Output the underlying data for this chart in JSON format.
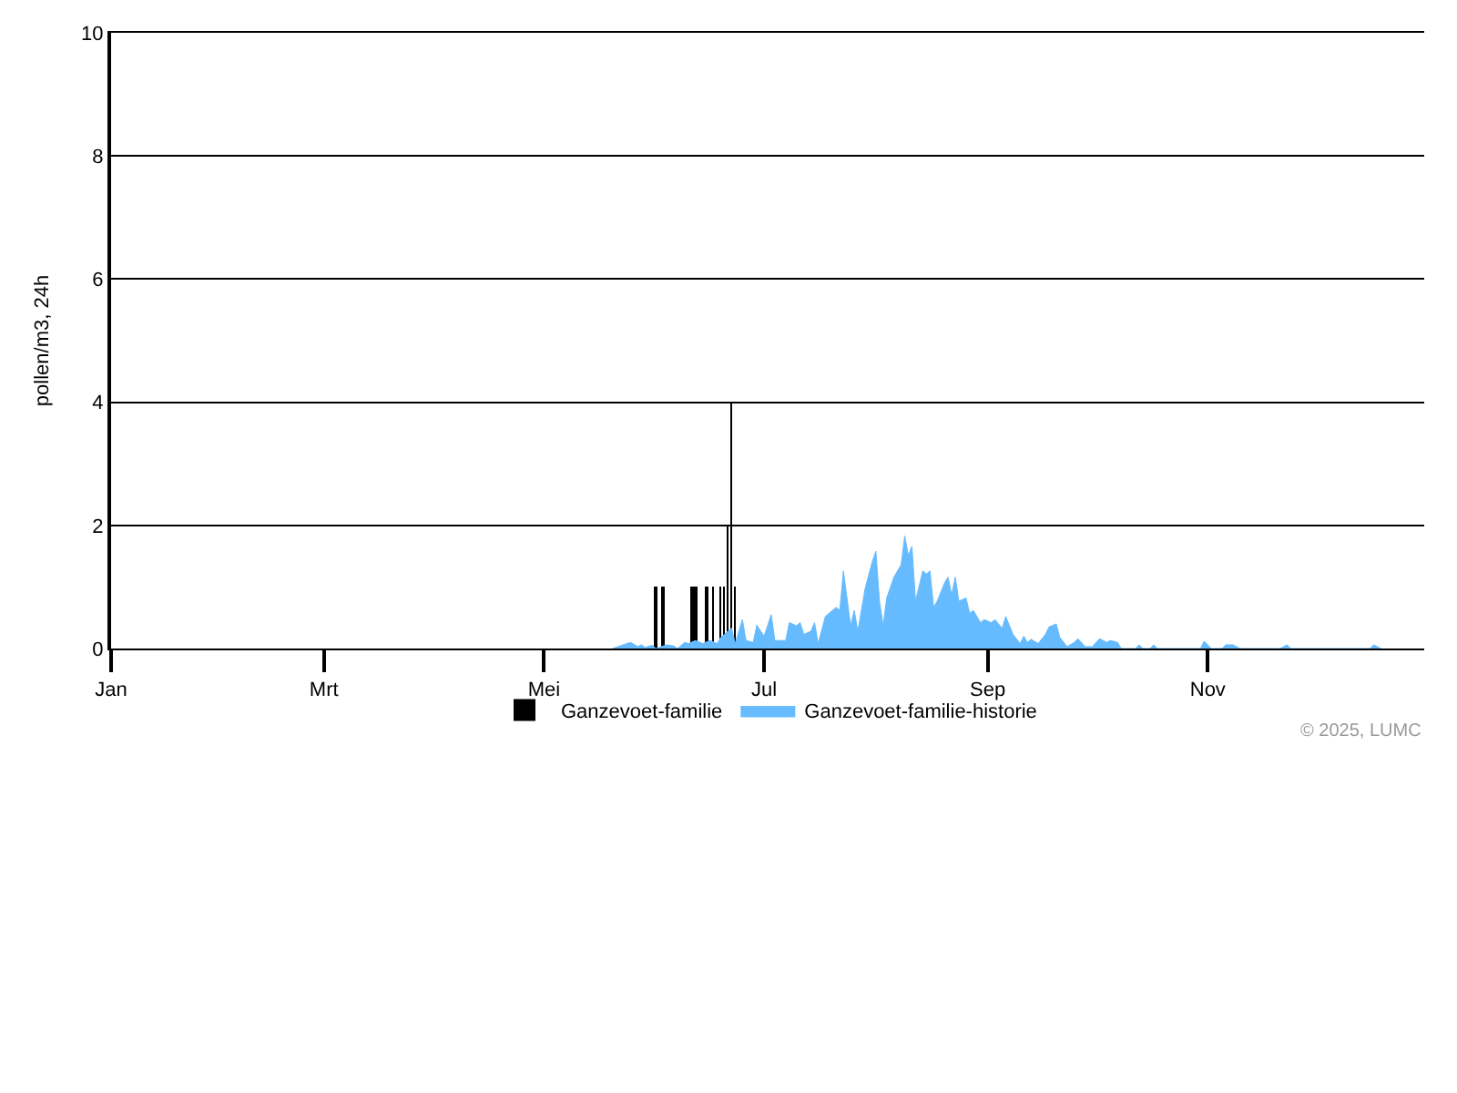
{
  "chart_data": {
    "type": "area",
    "ylabel": "pollen/m3, 24h",
    "xlim": [
      "--01-01",
      "--12-31"
    ],
    "xticks": [
      {
        "value": "--01-01",
        "label": "Jan"
      },
      {
        "value": "--03-01",
        "label": "Mrt"
      },
      {
        "value": "--05-01",
        "label": "Mei"
      },
      {
        "value": "--07-01",
        "label": "Jul"
      },
      {
        "value": "--09-01",
        "label": "Sep"
      },
      {
        "value": "--11-01",
        "label": "Nov"
      }
    ],
    "ylim": [
      0,
      10
    ],
    "yticks": [
      0,
      2,
      4,
      6,
      8,
      10
    ],
    "grid": "y",
    "legend": "bottom",
    "annotations": [
      "© 2025, LUMC"
    ],
    "series": [
      {
        "name": "Ganzevoet-familie",
        "type": "bar",
        "color": "#000000",
        "x": [
          "--06-01",
          "--06-03",
          "--06-11",
          "--06-12",
          "--06-15",
          "--06-17",
          "--06-19",
          "--06-20",
          "--06-21",
          "--06-22",
          "--06-23"
        ],
        "values": [
          1,
          1,
          1,
          1,
          1,
          1,
          1,
          1,
          2,
          4,
          1
        ]
      },
      {
        "name": "Ganzevoet-familie-historie",
        "color": "#66bbff",
        "x": [
          "--05-20",
          "--05-25",
          "--05-27",
          "--05-28",
          "--05-29",
          "--05-31",
          "--06-01",
          "--06-04",
          "--06-06",
          "--06-07",
          "--06-09",
          "--06-10",
          "--06-12",
          "--06-14",
          "--06-16",
          "--06-18",
          "--06-19",
          "--06-20",
          "--06-22",
          "--06-23",
          "--06-25",
          "--06-26",
          "--06-28",
          "--06-29",
          "--07-01",
          "--07-03",
          "--07-04",
          "--07-07",
          "--07-08",
          "--07-10",
          "--07-11",
          "--07-12",
          "--07-14",
          "--07-15",
          "--07-16",
          "--07-18",
          "--07-21",
          "--07-22",
          "--07-23",
          "--07-25",
          "--07-26",
          "--07-27",
          "--07-29",
          "--07-31",
          "--08-01",
          "--08-02",
          "--08-03",
          "--08-04",
          "--08-06",
          "--08-08",
          "--08-09",
          "--08-10",
          "--08-11",
          "--08-12",
          "--08-14",
          "--08-15",
          "--08-16",
          "--08-17",
          "--08-18",
          "--08-20",
          "--08-21",
          "--08-22",
          "--08-23",
          "--08-24",
          "--08-26",
          "--08-27",
          "--08-28",
          "--08-30",
          "--08-31",
          "--09-02",
          "--09-03",
          "--09-05",
          "--09-06",
          "--09-08",
          "--09-10",
          "--09-11",
          "--09-12",
          "--09-13",
          "--09-15",
          "--09-17",
          "--09-18",
          "--09-20",
          "--09-21",
          "--09-23",
          "--09-25",
          "--09-26",
          "--09-28",
          "--09-30",
          "--10-02",
          "--10-04",
          "--10-05",
          "--10-07",
          "--10-08",
          "--10-12",
          "--10-13",
          "--10-14",
          "--10-16",
          "--10-17",
          "--10-18",
          "--10-30",
          "--10-31",
          "--11-02",
          "--11-05",
          "--11-06",
          "--11-08",
          "--11-10",
          "--11-21",
          "--11-23",
          "--11-24",
          "--12-16",
          "--12-17",
          "--12-19"
        ],
        "values": [
          0,
          0.1,
          0.03,
          0.06,
          0.02,
          0.05,
          0,
          0.06,
          0.04,
          0,
          0.1,
          0.08,
          0.13,
          0.08,
          0.13,
          0.08,
          0.18,
          0.23,
          0.33,
          0.08,
          0.47,
          0.13,
          0.1,
          0.38,
          0.2,
          0.55,
          0.13,
          0.13,
          0.42,
          0.37,
          0.42,
          0.23,
          0.28,
          0.42,
          0.08,
          0.52,
          0.67,
          0.62,
          1.26,
          0.37,
          0.62,
          0.28,
          0.97,
          1.41,
          1.58,
          0.77,
          0.37,
          0.82,
          1.16,
          1.36,
          1.83,
          1.51,
          1.66,
          0.77,
          1.26,
          1.21,
          1.26,
          0.67,
          0.77,
          1.06,
          1.16,
          0.87,
          1.16,
          0.77,
          0.82,
          0.57,
          0.62,
          0.42,
          0.47,
          0.42,
          0.47,
          0.33,
          0.52,
          0.23,
          0.08,
          0.2,
          0.1,
          0.15,
          0.08,
          0.23,
          0.35,
          0.4,
          0.18,
          0.03,
          0.1,
          0.16,
          0.03,
          0.03,
          0.16,
          0.1,
          0.13,
          0.1,
          0,
          0,
          0.06,
          0,
          0,
          0.06,
          0,
          0,
          0.12,
          0,
          0,
          0.06,
          0.06,
          0,
          0,
          0.06,
          0,
          0,
          0.06,
          0
        ]
      }
    ]
  }
}
